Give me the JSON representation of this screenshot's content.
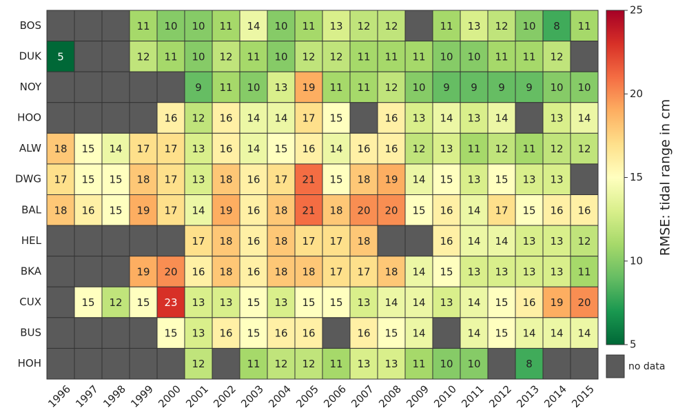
{
  "chart_data": {
    "type": "heatmap",
    "x_categories": [
      "1996",
      "1997",
      "1998",
      "1999",
      "2000",
      "2001",
      "2002",
      "2003",
      "2004",
      "2005",
      "2006",
      "2007",
      "2008",
      "2009",
      "2010",
      "2011",
      "2012",
      "2013",
      "2014",
      "2015"
    ],
    "y_categories": [
      "BOS",
      "DUK",
      "NOY",
      "HOO",
      "ALW",
      "DWG",
      "BAL",
      "HEL",
      "BKA",
      "CUX",
      "BUS",
      "HOH"
    ],
    "values": [
      [
        null,
        null,
        null,
        11,
        10,
        10,
        11,
        14,
        10,
        11,
        13,
        12,
        12,
        null,
        11,
        13,
        12,
        10,
        8,
        11
      ],
      [
        5,
        null,
        null,
        12,
        11,
        10,
        12,
        11,
        10,
        12,
        12,
        11,
        11,
        11,
        10,
        10,
        11,
        11,
        12,
        null
      ],
      [
        null,
        null,
        null,
        null,
        null,
        9,
        11,
        10,
        13,
        19,
        11,
        11,
        12,
        10,
        9,
        9,
        9,
        9,
        10,
        10
      ],
      [
        null,
        null,
        null,
        null,
        16,
        12,
        16,
        14,
        14,
        17,
        15,
        null,
        16,
        13,
        14,
        13,
        14,
        null,
        13,
        14
      ],
      [
        18,
        15,
        14,
        17,
        17,
        13,
        16,
        14,
        15,
        16,
        14,
        16,
        16,
        12,
        13,
        11,
        12,
        11,
        12,
        12
      ],
      [
        17,
        15,
        15,
        18,
        17,
        13,
        18,
        16,
        17,
        21,
        15,
        18,
        19,
        14,
        15,
        13,
        15,
        13,
        13,
        null
      ],
      [
        18,
        16,
        15,
        19,
        17,
        14,
        19,
        16,
        18,
        21,
        18,
        20,
        20,
        15,
        16,
        14,
        17,
        15,
        16,
        16
      ],
      [
        null,
        null,
        null,
        null,
        null,
        17,
        18,
        16,
        18,
        17,
        17,
        18,
        null,
        null,
        16,
        14,
        14,
        13,
        13,
        12
      ],
      [
        null,
        null,
        null,
        19,
        20,
        16,
        18,
        16,
        18,
        18,
        17,
        17,
        18,
        14,
        15,
        13,
        13,
        13,
        13,
        11
      ],
      [
        null,
        15,
        12,
        15,
        23,
        13,
        13,
        15,
        13,
        15,
        15,
        13,
        14,
        14,
        13,
        14,
        15,
        16,
        19,
        20
      ],
      [
        null,
        null,
        null,
        null,
        15,
        13,
        16,
        15,
        16,
        16,
        null,
        16,
        15,
        14,
        null,
        14,
        15,
        14,
        14,
        14
      ],
      [
        null,
        null,
        null,
        null,
        null,
        12,
        null,
        11,
        12,
        12,
        11,
        13,
        13,
        11,
        10,
        10,
        null,
        8,
        null,
        null
      ]
    ],
    "zlim": [
      5,
      25
    ],
    "zticks": [
      5,
      10,
      15,
      20,
      25
    ],
    "colorbar_label": "RMSE: tidal range in cm",
    "colorscale": [
      "#006837",
      "#1a9850",
      "#66bd63",
      "#a6d96a",
      "#d9ef8b",
      "#ffffbf",
      "#fee08b",
      "#fdae61",
      "#f46d43",
      "#d73027",
      "#a50026"
    ],
    "nodata_color": "#5a5a5a",
    "nodata_label": "no data"
  }
}
